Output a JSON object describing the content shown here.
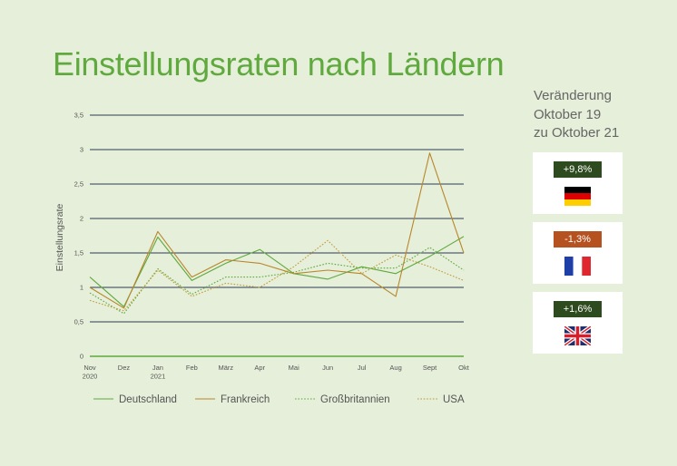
{
  "title": "Einstellungsraten nach Ländern",
  "side": {
    "title_lines": [
      "Veränderung",
      "Oktober 19",
      "zu Oktober 21"
    ],
    "cards": [
      {
        "value": "+9,8%",
        "badge_color": "#2e4a1f",
        "flag": "germany-flag-icon"
      },
      {
        "value": "-1,3%",
        "badge_color": "#b5521f",
        "flag": "france-flag-icon"
      },
      {
        "value": "+1,6%",
        "badge_color": "#2e4a1f",
        "flag": "uk-flag-icon"
      }
    ]
  },
  "chart_data": {
    "type": "line",
    "ylabel": "Einstellungsrate",
    "xlabel": "",
    "ylim": [
      0,
      3.5
    ],
    "yticks": [
      "0",
      "0,5",
      "1",
      "1,5",
      "2",
      "2,5",
      "3",
      "3,5"
    ],
    "categories": [
      [
        "Nov",
        "2020"
      ],
      [
        "Dez"
      ],
      [
        "Jan",
        "2021"
      ],
      [
        "Feb"
      ],
      [
        "März"
      ],
      [
        "Apr"
      ],
      [
        "Mai"
      ],
      [
        "Jun"
      ],
      [
        "Jul"
      ],
      [
        "Aug"
      ],
      [
        "Sept"
      ],
      [
        "Okt"
      ]
    ],
    "grid": true,
    "legend": "bottom",
    "series": [
      {
        "name": "Deutschland",
        "color": "#5fa93f",
        "style": "solid",
        "values": [
          1.15,
          0.72,
          1.73,
          1.1,
          1.35,
          1.55,
          1.2,
          1.12,
          1.3,
          1.2,
          1.45,
          1.74
        ]
      },
      {
        "name": "Frankreich",
        "color": "#b8862b",
        "style": "solid",
        "values": [
          1.0,
          0.7,
          1.81,
          1.15,
          1.4,
          1.35,
          1.2,
          1.25,
          1.2,
          0.87,
          2.95,
          1.5
        ]
      },
      {
        "name": "Großbritannien",
        "color": "#5fa93f",
        "style": "dotted",
        "values": [
          0.92,
          0.62,
          1.27,
          0.9,
          1.15,
          1.15,
          1.22,
          1.35,
          1.28,
          1.28,
          1.58,
          1.25
        ]
      },
      {
        "name": "USA",
        "color": "#c29a3a",
        "style": "dotted",
        "values": [
          0.81,
          0.66,
          1.25,
          0.87,
          1.06,
          1.0,
          1.3,
          1.68,
          1.2,
          1.47,
          1.3,
          1.1
        ]
      }
    ]
  }
}
